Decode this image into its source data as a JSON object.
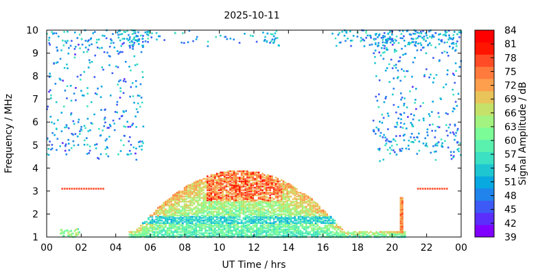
{
  "chart_data": {
    "type": "heatmap",
    "title": "2025-10-11",
    "xlabel": "UT Time / hrs",
    "ylabel": "Frequency / MHz",
    "colorbar_label": "Signal Amplitude / dB",
    "xlim": [
      0,
      24
    ],
    "ylim": [
      1,
      10
    ],
    "x_tick_labels": [
      "00",
      "02",
      "04",
      "06",
      "08",
      "10",
      "12",
      "14",
      "16",
      "18",
      "20",
      "22",
      "00"
    ],
    "y_tick_labels": [
      "1",
      "2",
      "3",
      "4",
      "5",
      "6",
      "7",
      "8",
      "9",
      "10"
    ],
    "colorbar": {
      "range": [
        39,
        84
      ],
      "tick_labels": [
        "39",
        "42",
        "45",
        "48",
        "51",
        "54",
        "57",
        "60",
        "63",
        "66",
        "69",
        "72",
        "75",
        "78",
        "81",
        "84"
      ],
      "colors": [
        "#7f00ff",
        "#5b2efc",
        "#3d5af6",
        "#2084ec",
        "#08a8e0",
        "#1ec6d2",
        "#3ce0c2",
        "#5af0ae",
        "#7cfc97",
        "#a2f380",
        "#c6e169",
        "#e8c45a",
        "#fd9f4c",
        "#ff7a3c",
        "#ff4b26",
        "#ff1500",
        "#ff0000"
      ]
    },
    "grid": false,
    "regions": [
      {
        "name": "daytime-low-frequency-arch",
        "x_range": [
          4.8,
          20.8
        ],
        "y_range": [
          1,
          3.9
        ],
        "peak_amplitude_db": 84
      },
      {
        "name": "spike-near-20.5h",
        "x": 20.5,
        "y_range": [
          1.2,
          2.7
        ],
        "peak_amplitude_db": 81
      },
      {
        "name": "line-3.1MHz-early",
        "x_range": [
          0.9,
          3.4
        ],
        "y": 3.1,
        "amplitude_db": 80
      },
      {
        "name": "line-3.1MHz-late",
        "x_range": [
          21.5,
          23.2
        ],
        "y": 3.1,
        "amplitude_db": 80
      },
      {
        "name": "night-scatter-early",
        "x_range": [
          0,
          5.6
        ],
        "y_range": [
          4.3,
          10
        ],
        "amplitude_db": 52
      },
      {
        "name": "night-scatter-late",
        "x_range": [
          18.9,
          24
        ],
        "y_range": [
          4.3,
          10
        ],
        "amplitude_db": 52
      },
      {
        "name": "top-band-scatter",
        "x_range": [
          4,
          24
        ],
        "y_range": [
          9.3,
          10
        ],
        "amplitude_db": 55
      }
    ]
  }
}
